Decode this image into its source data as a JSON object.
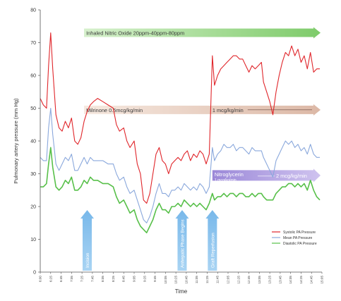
{
  "chart_data": {
    "type": "line",
    "title": "",
    "xlabel": "Time",
    "ylabel": "Pulmonary artery pressure (mm Hg)",
    "ylim": [
      0,
      80
    ],
    "yticks": [
      0,
      10,
      20,
      30,
      40,
      50,
      60,
      70,
      80
    ],
    "grid": false,
    "legend_position": "right",
    "x_tick_labels": [
      "6:00",
      "6:25",
      "6:45",
      "7:05",
      "7:25",
      "7:45",
      "8:05",
      "8:25",
      "8:45",
      "9:05",
      "9:25",
      "9:45",
      "10:05",
      "10:25",
      "10:45",
      "11:05",
      "11:25",
      "11:45",
      "12:05",
      "12:25",
      "12:45",
      "13:05",
      "13:25",
      "13:45",
      "14:05",
      "14:25",
      "14:45",
      "15:05"
    ],
    "x_range": [
      0,
      27
    ],
    "series": [
      {
        "name": "Systolic PA Pressure",
        "color": "#e0262b",
        "points": [
          [
            0,
            53
          ],
          [
            0.3,
            51
          ],
          [
            0.6,
            50
          ],
          [
            0.8,
            63
          ],
          [
            1.0,
            73
          ],
          [
            1.2,
            62
          ],
          [
            1.5,
            48
          ],
          [
            1.8,
            44
          ],
          [
            2.1,
            43
          ],
          [
            2.4,
            46
          ],
          [
            2.7,
            44
          ],
          [
            3.0,
            47
          ],
          [
            3.3,
            40
          ],
          [
            3.6,
            39
          ],
          [
            3.9,
            41
          ],
          [
            4.2,
            46
          ],
          [
            4.5,
            49
          ],
          [
            4.8,
            51
          ],
          [
            5.1,
            52
          ],
          [
            5.5,
            53
          ],
          [
            6.0,
            52
          ],
          [
            6.5,
            51
          ],
          [
            7.0,
            50
          ],
          [
            7.3,
            45
          ],
          [
            7.6,
            43
          ],
          [
            8.0,
            44
          ],
          [
            8.3,
            40
          ],
          [
            8.6,
            38
          ],
          [
            9.0,
            40
          ],
          [
            9.3,
            33
          ],
          [
            9.6,
            30
          ],
          [
            9.9,
            22
          ],
          [
            10.2,
            21
          ],
          [
            10.5,
            24
          ],
          [
            10.8,
            30
          ],
          [
            11.1,
            36
          ],
          [
            11.4,
            38
          ],
          [
            11.7,
            34
          ],
          [
            12.0,
            33
          ],
          [
            12.3,
            30
          ],
          [
            12.6,
            33
          ],
          [
            12.9,
            34
          ],
          [
            13.2,
            35
          ],
          [
            13.5,
            34
          ],
          [
            13.8,
            36
          ],
          [
            14.1,
            37
          ],
          [
            14.4,
            34
          ],
          [
            14.7,
            36
          ],
          [
            15.0,
            35
          ],
          [
            15.3,
            37
          ],
          [
            15.6,
            36
          ],
          [
            15.9,
            33
          ],
          [
            16.2,
            36
          ],
          [
            16.5,
            66
          ],
          [
            16.7,
            57
          ],
          [
            17.0,
            60
          ],
          [
            17.3,
            62
          ],
          [
            17.6,
            63
          ],
          [
            17.9,
            64
          ],
          [
            18.2,
            65
          ],
          [
            18.5,
            66
          ],
          [
            18.8,
            66
          ],
          [
            19.1,
            65
          ],
          [
            19.4,
            65
          ],
          [
            19.7,
            63
          ],
          [
            20.0,
            61
          ],
          [
            20.3,
            63
          ],
          [
            20.6,
            62
          ],
          [
            20.9,
            63
          ],
          [
            21.2,
            64
          ],
          [
            21.4,
            58
          ],
          [
            21.7,
            55
          ],
          [
            22.0,
            52
          ],
          [
            22.3,
            48
          ],
          [
            22.6,
            55
          ],
          [
            22.9,
            60
          ],
          [
            23.2,
            64
          ],
          [
            23.5,
            67
          ],
          [
            23.8,
            66
          ],
          [
            24.1,
            69
          ],
          [
            24.4,
            66
          ],
          [
            24.7,
            68
          ],
          [
            25.0,
            64
          ],
          [
            25.3,
            66
          ],
          [
            25.6,
            62
          ],
          [
            25.9,
            67
          ],
          [
            26.2,
            61
          ],
          [
            26.5,
            62
          ],
          [
            26.8,
            62
          ]
        ]
      },
      {
        "name": "Mean PA Pressure",
        "color": "#8aa8dc",
        "points": [
          [
            0,
            35
          ],
          [
            0.3,
            34
          ],
          [
            0.6,
            34
          ],
          [
            0.8,
            44
          ],
          [
            1.0,
            50
          ],
          [
            1.2,
            42
          ],
          [
            1.5,
            33
          ],
          [
            1.8,
            31
          ],
          [
            2.1,
            33
          ],
          [
            2.4,
            35
          ],
          [
            2.7,
            34
          ],
          [
            3.0,
            36
          ],
          [
            3.3,
            31
          ],
          [
            3.6,
            31
          ],
          [
            3.9,
            33
          ],
          [
            4.2,
            35
          ],
          [
            4.5,
            33
          ],
          [
            4.8,
            35
          ],
          [
            5.1,
            34
          ],
          [
            5.5,
            34
          ],
          [
            6.0,
            34
          ],
          [
            6.5,
            33
          ],
          [
            7.0,
            33
          ],
          [
            7.3,
            30
          ],
          [
            7.6,
            28
          ],
          [
            8.0,
            29
          ],
          [
            8.3,
            26
          ],
          [
            8.6,
            24
          ],
          [
            9.0,
            25
          ],
          [
            9.3,
            22
          ],
          [
            9.6,
            19
          ],
          [
            9.9,
            16
          ],
          [
            10.2,
            15
          ],
          [
            10.5,
            17
          ],
          [
            10.8,
            20
          ],
          [
            11.1,
            24
          ],
          [
            11.4,
            27
          ],
          [
            11.7,
            24
          ],
          [
            12.0,
            24
          ],
          [
            12.3,
            23
          ],
          [
            12.6,
            25
          ],
          [
            12.9,
            25
          ],
          [
            13.2,
            26
          ],
          [
            13.5,
            25
          ],
          [
            13.8,
            27
          ],
          [
            14.1,
            26
          ],
          [
            14.4,
            25
          ],
          [
            14.7,
            26
          ],
          [
            15.0,
            25
          ],
          [
            15.3,
            27
          ],
          [
            15.6,
            26
          ],
          [
            15.9,
            24
          ],
          [
            16.2,
            26
          ],
          [
            16.5,
            38
          ],
          [
            16.7,
            34
          ],
          [
            17.0,
            36
          ],
          [
            17.3,
            37
          ],
          [
            17.6,
            39
          ],
          [
            17.9,
            38
          ],
          [
            18.2,
            38
          ],
          [
            18.5,
            39
          ],
          [
            18.8,
            37
          ],
          [
            19.1,
            38
          ],
          [
            19.4,
            38
          ],
          [
            19.7,
            37
          ],
          [
            20.0,
            36
          ],
          [
            20.3,
            38
          ],
          [
            20.6,
            37
          ],
          [
            20.9,
            37
          ],
          [
            21.2,
            37
          ],
          [
            21.4,
            35
          ],
          [
            21.7,
            33
          ],
          [
            22.0,
            31
          ],
          [
            22.3,
            29
          ],
          [
            22.6,
            34
          ],
          [
            22.9,
            36
          ],
          [
            23.2,
            38
          ],
          [
            23.5,
            40
          ],
          [
            23.8,
            39
          ],
          [
            24.1,
            40
          ],
          [
            24.4,
            38
          ],
          [
            24.7,
            39
          ],
          [
            25.0,
            37
          ],
          [
            25.3,
            38
          ],
          [
            25.6,
            36
          ],
          [
            25.9,
            39
          ],
          [
            26.2,
            36
          ],
          [
            26.5,
            35
          ],
          [
            26.8,
            35
          ]
        ]
      },
      {
        "name": "Diastolic PA Pressure",
        "color": "#58c04a",
        "points": [
          [
            0,
            26
          ],
          [
            0.3,
            26
          ],
          [
            0.6,
            27
          ],
          [
            0.8,
            33
          ],
          [
            1.0,
            38
          ],
          [
            1.2,
            32
          ],
          [
            1.5,
            26
          ],
          [
            1.8,
            25
          ],
          [
            2.1,
            26
          ],
          [
            2.4,
            28
          ],
          [
            2.7,
            27
          ],
          [
            3.0,
            29
          ],
          [
            3.3,
            25
          ],
          [
            3.6,
            25
          ],
          [
            3.9,
            26
          ],
          [
            4.2,
            28
          ],
          [
            4.5,
            27
          ],
          [
            4.8,
            29
          ],
          [
            5.1,
            28
          ],
          [
            5.5,
            28
          ],
          [
            6.0,
            27
          ],
          [
            6.5,
            27
          ],
          [
            7.0,
            26
          ],
          [
            7.3,
            23
          ],
          [
            7.6,
            21
          ],
          [
            8.0,
            22
          ],
          [
            8.3,
            20
          ],
          [
            8.6,
            18
          ],
          [
            9.0,
            19
          ],
          [
            9.3,
            16
          ],
          [
            9.6,
            14
          ],
          [
            9.9,
            13
          ],
          [
            10.2,
            12
          ],
          [
            10.5,
            14
          ],
          [
            10.8,
            16
          ],
          [
            11.1,
            19
          ],
          [
            11.4,
            21
          ],
          [
            11.7,
            19
          ],
          [
            12.0,
            19
          ],
          [
            12.3,
            18
          ],
          [
            12.6,
            20
          ],
          [
            12.9,
            20
          ],
          [
            13.2,
            21
          ],
          [
            13.5,
            20
          ],
          [
            13.8,
            22
          ],
          [
            14.1,
            21
          ],
          [
            14.4,
            20
          ],
          [
            14.7,
            21
          ],
          [
            15.0,
            20
          ],
          [
            15.3,
            21
          ],
          [
            15.6,
            20
          ],
          [
            15.9,
            19
          ],
          [
            16.2,
            21
          ],
          [
            16.5,
            24
          ],
          [
            16.7,
            22
          ],
          [
            17.0,
            23
          ],
          [
            17.3,
            23
          ],
          [
            17.6,
            24
          ],
          [
            17.9,
            23
          ],
          [
            18.2,
            24
          ],
          [
            18.5,
            24
          ],
          [
            18.8,
            23
          ],
          [
            19.1,
            24
          ],
          [
            19.4,
            24
          ],
          [
            19.7,
            23
          ],
          [
            20.0,
            23
          ],
          [
            20.3,
            24
          ],
          [
            20.6,
            23
          ],
          [
            20.9,
            24
          ],
          [
            21.2,
            24
          ],
          [
            21.4,
            23
          ],
          [
            21.7,
            22
          ],
          [
            22.0,
            22
          ],
          [
            22.3,
            22
          ],
          [
            22.6,
            24
          ],
          [
            22.9,
            25
          ],
          [
            23.2,
            26
          ],
          [
            23.5,
            26
          ],
          [
            23.8,
            27
          ],
          [
            24.1,
            27
          ],
          [
            24.4,
            26
          ],
          [
            24.7,
            27
          ],
          [
            25.0,
            26
          ],
          [
            25.3,
            27
          ],
          [
            25.6,
            25
          ],
          [
            25.9,
            28
          ],
          [
            26.2,
            25
          ],
          [
            26.5,
            23
          ],
          [
            26.8,
            22
          ]
        ]
      }
    ],
    "drug_bands": [
      {
        "text": "Inhaled Nitric Oxide 20ppm-40ppm-80ppm",
        "x_start": 4.2,
        "x_end": 27,
        "y": 73,
        "color": "#9fd88e"
      },
      {
        "text": "Milrinone 0.5mcg/kg/min",
        "text2": "1 mcg/kg/min",
        "x_start": 4.2,
        "x_end": 27,
        "y": 49.5,
        "text2_x": 16.5,
        "color": "#ecd2c3"
      },
      {
        "text": "Nitroglycerin",
        "sub": "1 mcg/kg/min",
        "text2": "2 mcg/kg/min",
        "x_start": 16.5,
        "x_end": 27,
        "y": 29.5,
        "text2_x": 22.6,
        "color": "#b7a6e2"
      }
    ],
    "events": [
      {
        "label": "Incision",
        "x": 4.5
      },
      {
        "label": "Anhepatic Phase Begins",
        "x": 13.6
      },
      {
        "label": "Graft Reperfusion",
        "x": 16.5
      }
    ]
  }
}
